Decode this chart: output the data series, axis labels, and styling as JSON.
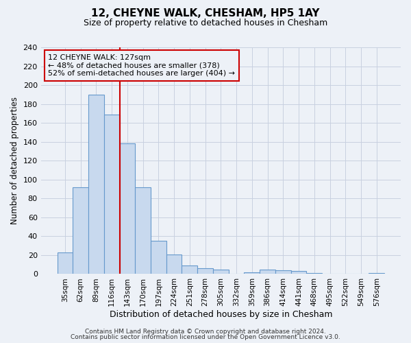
{
  "title": "12, CHEYNE WALK, CHESHAM, HP5 1AY",
  "subtitle": "Size of property relative to detached houses in Chesham",
  "xlabel": "Distribution of detached houses by size in Chesham",
  "ylabel": "Number of detached properties",
  "bar_labels": [
    "35sqm",
    "62sqm",
    "89sqm",
    "116sqm",
    "143sqm",
    "170sqm",
    "197sqm",
    "224sqm",
    "251sqm",
    "278sqm",
    "305sqm",
    "332sqm",
    "359sqm",
    "386sqm",
    "414sqm",
    "441sqm",
    "468sqm",
    "495sqm",
    "522sqm",
    "549sqm",
    "576sqm"
  ],
  "bar_values": [
    23,
    92,
    190,
    169,
    138,
    92,
    35,
    21,
    9,
    6,
    5,
    0,
    2,
    5,
    4,
    3,
    1,
    0,
    0,
    0,
    1
  ],
  "bar_color": "#c8d9ee",
  "bar_edge_color": "#6699cc",
  "vline_x_bin_index": 3,
  "annotation_box_text": "12 CHEYNE WALK: 127sqm\n← 48% of detached houses are smaller (378)\n52% of semi-detached houses are larger (404) →",
  "annotation_box_color": "#cc0000",
  "ylim": [
    0,
    240
  ],
  "yticks": [
    0,
    20,
    40,
    60,
    80,
    100,
    120,
    140,
    160,
    180,
    200,
    220,
    240
  ],
  "grid_color": "#c8d0e0",
  "bg_color": "#edf1f7",
  "footer1": "Contains HM Land Registry data © Crown copyright and database right 2024.",
  "footer2": "Contains public sector information licensed under the Open Government Licence v3.0."
}
